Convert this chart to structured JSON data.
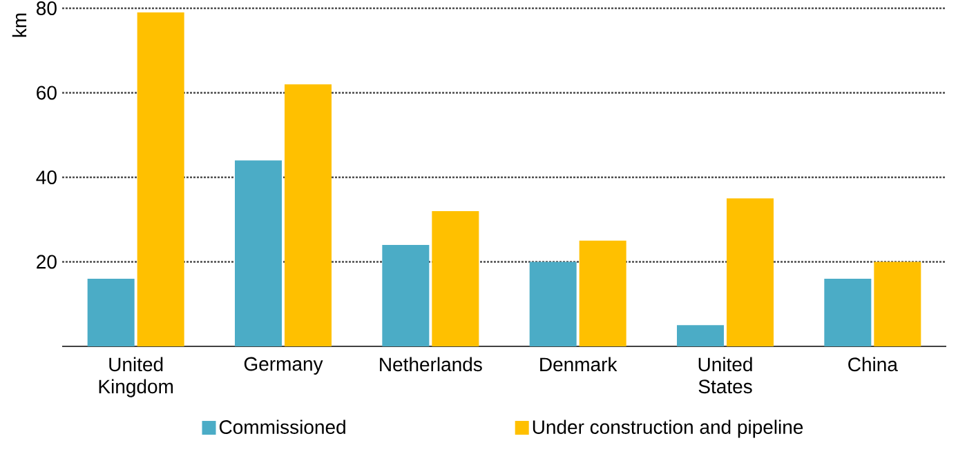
{
  "chart_data": {
    "type": "bar",
    "ylabel": "km",
    "categories": [
      "United\nKingdom",
      "Germany",
      "Netherlands",
      "Denmark",
      "United\nStates",
      "China"
    ],
    "series": [
      {
        "name": "Commissioned",
        "color": "#4bacc6",
        "values": [
          16,
          44,
          24,
          20,
          5,
          16
        ]
      },
      {
        "name": "Under construction and pipeline",
        "color": "#ffc000",
        "values": [
          79,
          62,
          32,
          25,
          35,
          20
        ]
      }
    ],
    "ylim": [
      0,
      80
    ],
    "yticks": [
      20,
      40,
      60,
      80
    ],
    "grid": "y",
    "legend": "bottom"
  }
}
